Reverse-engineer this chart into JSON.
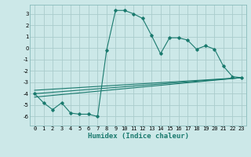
{
  "xlabel": "Humidex (Indice chaleur)",
  "bg_color": "#cce8e8",
  "grid_color": "#aacccc",
  "line_color": "#1a7a6e",
  "xlim": [
    -0.5,
    23.5
  ],
  "ylim": [
    -6.8,
    3.8
  ],
  "xticks": [
    0,
    1,
    2,
    3,
    4,
    5,
    6,
    7,
    8,
    9,
    10,
    11,
    12,
    13,
    14,
    15,
    16,
    17,
    18,
    19,
    20,
    21,
    22,
    23
  ],
  "yticks": [
    -6,
    -5,
    -4,
    -3,
    -2,
    -1,
    0,
    1,
    2,
    3
  ],
  "main_x": [
    0,
    1,
    2,
    3,
    4,
    5,
    6,
    7,
    8,
    9,
    10,
    11,
    12,
    13,
    14,
    15,
    16,
    17,
    18,
    19,
    20,
    21,
    22,
    23
  ],
  "main_y": [
    -4.0,
    -4.8,
    -5.4,
    -4.8,
    -5.7,
    -5.8,
    -5.8,
    -6.0,
    -0.2,
    3.3,
    3.3,
    3.0,
    2.6,
    1.1,
    -0.5,
    0.9,
    0.9,
    0.7,
    -0.1,
    0.2,
    -0.1,
    -1.6,
    -2.5,
    -2.6
  ],
  "line2_x": [
    0,
    23
  ],
  "line2_y": [
    -4.0,
    -2.6
  ],
  "line3_x": [
    0,
    23
  ],
  "line3_y": [
    -4.3,
    -2.6
  ],
  "line4_x": [
    0,
    23
  ],
  "line4_y": [
    -3.7,
    -2.6
  ],
  "xlabel_fontsize": 6.5,
  "tick_fontsize": 5.0,
  "lw": 0.8,
  "marker_size": 1.8
}
